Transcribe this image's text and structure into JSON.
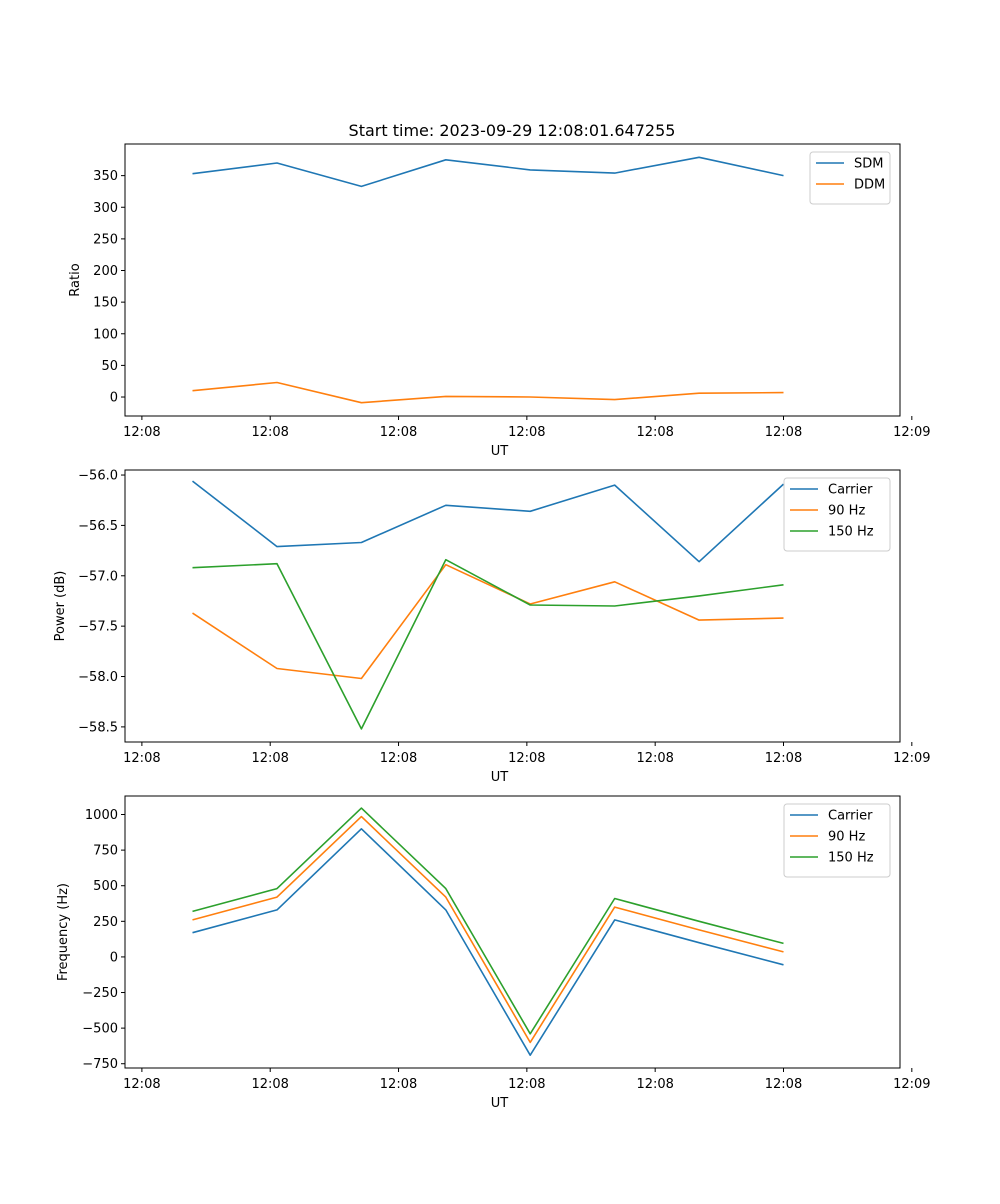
{
  "figure": {
    "title": "Start time: 2023-09-29 12:08:01.647255"
  },
  "chart_data": [
    {
      "type": "line",
      "title": "",
      "xlabel": "UT",
      "ylabel": "Ratio",
      "x": [
        1,
        2,
        3,
        4,
        5,
        6,
        7,
        8
      ],
      "xlim": [
        0.2,
        9.38
      ],
      "xticks": [
        0.4,
        1.92,
        3.44,
        4.96,
        6.48,
        8.0,
        9.52
      ],
      "xtick_labels": [
        "12:08",
        "12:08",
        "12:08",
        "12:08",
        "12:08",
        "12:08",
        "12:09"
      ],
      "ylim": [
        -30,
        400
      ],
      "yticks": [
        0,
        50,
        100,
        150,
        200,
        250,
        300,
        350
      ],
      "ytick_labels": [
        "0",
        "50",
        "100",
        "150",
        "200",
        "250",
        "300",
        "350"
      ],
      "legend_position": "top-right",
      "series": [
        {
          "name": "SDM",
          "color": "#1f77b4",
          "values": [
            353,
            370,
            333,
            375,
            359,
            354,
            379,
            350
          ]
        },
        {
          "name": "DDM",
          "color": "#ff7f0e",
          "values": [
            10,
            23,
            -9,
            1,
            0,
            -4,
            6,
            7
          ]
        }
      ]
    },
    {
      "type": "line",
      "title": "",
      "xlabel": "UT",
      "ylabel": "Power (dB)",
      "x": [
        1,
        2,
        3,
        4,
        5,
        6,
        7,
        8
      ],
      "xlim": [
        0.2,
        9.38
      ],
      "xticks": [
        0.4,
        1.92,
        3.44,
        4.96,
        6.48,
        8.0,
        9.52
      ],
      "xtick_labels": [
        "12:08",
        "12:08",
        "12:08",
        "12:08",
        "12:08",
        "12:08",
        "12:09"
      ],
      "ylim": [
        -58.65,
        -55.95
      ],
      "yticks": [
        -58.5,
        -58.0,
        -57.5,
        -57.0,
        -56.5,
        -56.0
      ],
      "ytick_labels": [
        "−58.5",
        "−58.0",
        "−57.5",
        "−57.0",
        "−56.5",
        "−56.0"
      ],
      "legend_position": "top-right",
      "series": [
        {
          "name": "Carrier",
          "color": "#1f77b4",
          "values": [
            -56.06,
            -56.71,
            -56.67,
            -56.3,
            -56.36,
            -56.1,
            -56.86,
            -56.09
          ]
        },
        {
          "name": "90 Hz",
          "color": "#ff7f0e",
          "values": [
            -57.37,
            -57.92,
            -58.02,
            -56.89,
            -57.28,
            -57.06,
            -57.44,
            -57.42
          ]
        },
        {
          "name": "150 Hz",
          "color": "#2ca02c",
          "values": [
            -56.92,
            -56.88,
            -58.52,
            -56.84,
            -57.29,
            -57.3,
            -57.2,
            -57.09
          ]
        }
      ]
    },
    {
      "type": "line",
      "title": "",
      "xlabel": "UT",
      "ylabel": "Frequency (Hz)",
      "x": [
        1,
        2,
        3,
        4,
        5,
        6,
        7,
        8
      ],
      "xlim": [
        0.2,
        9.38
      ],
      "xticks": [
        0.4,
        1.92,
        3.44,
        4.96,
        6.48,
        8.0,
        9.52
      ],
      "xtick_labels": [
        "12:08",
        "12:08",
        "12:08",
        "12:08",
        "12:08",
        "12:08",
        "12:09"
      ],
      "ylim": [
        -780,
        1130
      ],
      "yticks": [
        -750,
        -500,
        -250,
        0,
        250,
        500,
        750,
        1000
      ],
      "ytick_labels": [
        "−750",
        "−500",
        "−250",
        "0",
        "250",
        "500",
        "750",
        "1000"
      ],
      "legend_position": "top-right",
      "series": [
        {
          "name": "Carrier",
          "color": "#1f77b4",
          "values": [
            170,
            330,
            900,
            330,
            -690,
            260,
            100,
            -55
          ]
        },
        {
          "name": "90 Hz",
          "color": "#ff7f0e",
          "values": [
            260,
            420,
            985,
            420,
            -600,
            350,
            190,
            35
          ]
        },
        {
          "name": "150 Hz",
          "color": "#2ca02c",
          "values": [
            320,
            480,
            1045,
            480,
            -540,
            410,
            250,
            95
          ]
        }
      ]
    }
  ]
}
